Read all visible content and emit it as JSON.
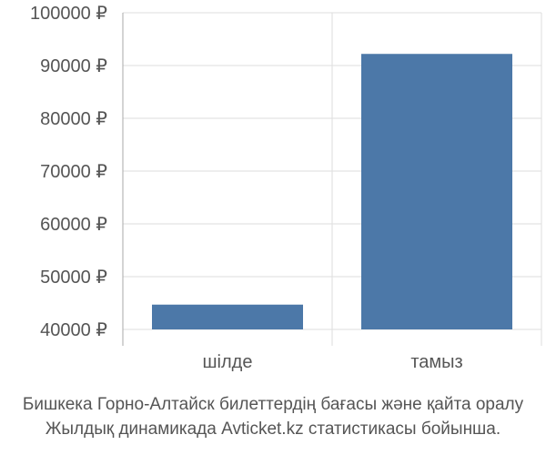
{
  "chart_data": {
    "type": "bar",
    "categories": [
      "шілде",
      "тамыз"
    ],
    "values": [
      44700,
      92200
    ],
    "ylim": [
      40000,
      100000
    ],
    "yticks": [
      40000,
      50000,
      60000,
      70000,
      80000,
      90000,
      100000
    ],
    "ytick_labels": [
      "40000 ₽",
      "50000 ₽",
      "60000 ₽",
      "70000 ₽",
      "80000 ₽",
      "90000 ₽",
      "100000 ₽"
    ],
    "grid": true,
    "bar_color": "#4c78a8",
    "grid_color": "#dddddd",
    "axis_color": "#aaaaaa",
    "label_color": "#555555"
  },
  "caption": {
    "line1": "Бишкека Горно-Алтайск билеттердің бағасы және қайта оралу",
    "line2": "Жылдық динамикада Avticket.kz статистикасы бойынша."
  }
}
